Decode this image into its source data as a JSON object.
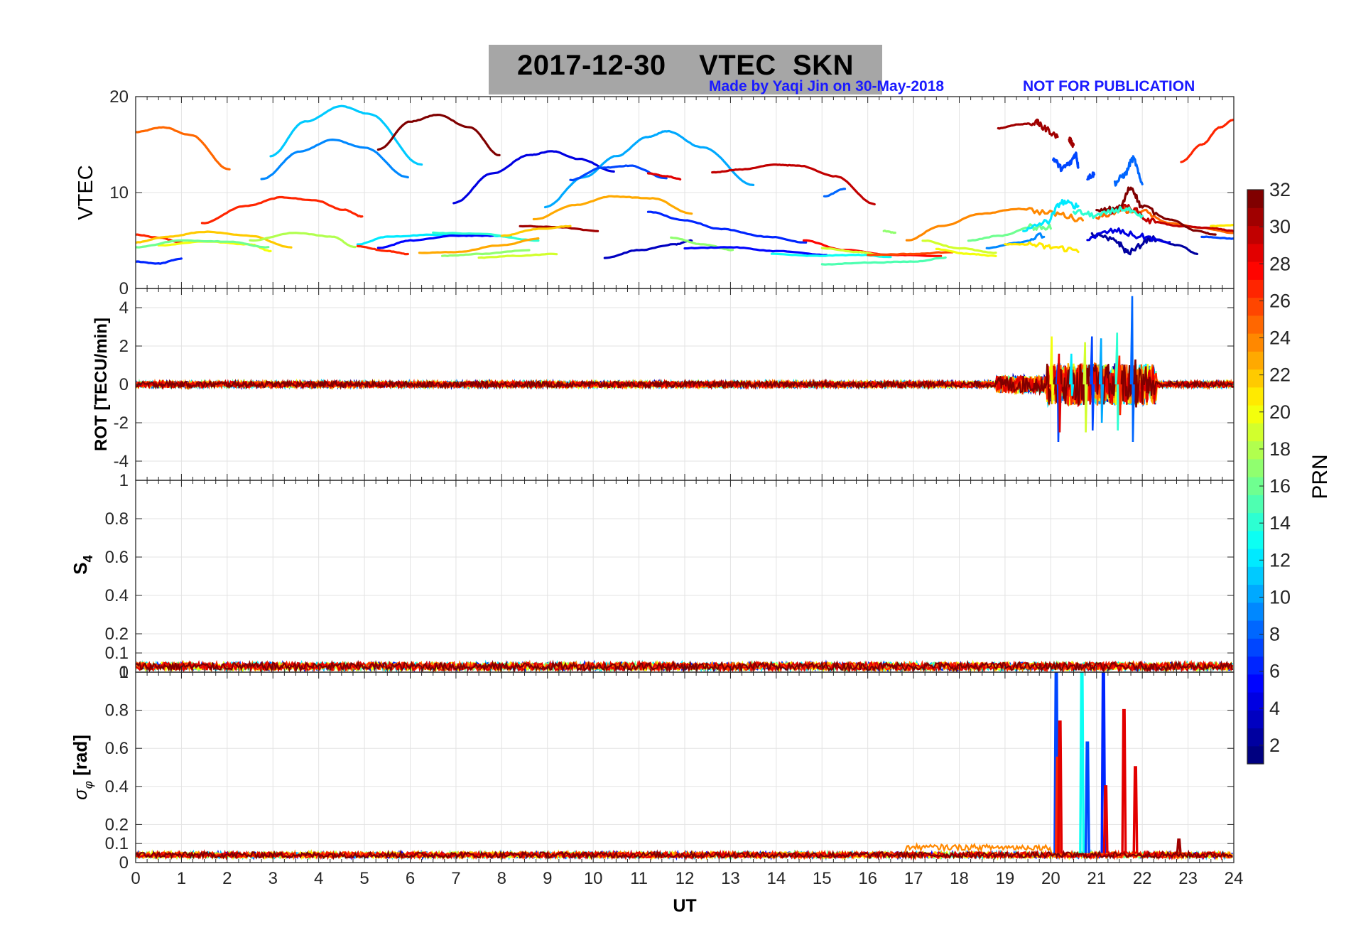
{
  "title": "2017-12-30    VTEC  SKN",
  "credit_made_by": "Made by Yaqi Jin on 30-May-2018",
  "credit_notice": "NOT FOR PUBLICATION",
  "xlabel": "UT",
  "x_ticks": [
    "0",
    "1",
    "2",
    "3",
    "4",
    "5",
    "6",
    "7",
    "8",
    "9",
    "10",
    "11",
    "12",
    "13",
    "14",
    "15",
    "16",
    "17",
    "18",
    "19",
    "20",
    "21",
    "22",
    "23",
    "24"
  ],
  "colorbar": {
    "label": "PRN",
    "ticks": [
      "2",
      "4",
      "6",
      "8",
      "10",
      "12",
      "14",
      "16",
      "18",
      "20",
      "22",
      "24",
      "26",
      "28",
      "30",
      "32"
    ],
    "range": [
      1,
      32
    ]
  },
  "panels": [
    {
      "id": "vtec",
      "ylabel": "VTEC",
      "y_ticks": [
        "0",
        "10",
        "20"
      ],
      "ylim": [
        0,
        20
      ]
    },
    {
      "id": "rot",
      "ylabel": "ROT [TECU/min]",
      "y_ticks": [
        "-4",
        "-2",
        "0",
        "2",
        "4"
      ],
      "ylim": [
        -5,
        5
      ]
    },
    {
      "id": "s4",
      "ylabel": "S4",
      "y_ticks": [
        "0",
        "0.1",
        "0.2",
        "0.4",
        "0.6",
        "0.8",
        "1"
      ],
      "ylim": [
        0,
        1
      ]
    },
    {
      "id": "sigma",
      "ylabel": "σφ [rad]",
      "y_ticks": [
        "0",
        "0.1",
        "0.2",
        "0.4",
        "0.6",
        "0.8",
        "1"
      ],
      "ylim": [
        0,
        1
      ]
    }
  ],
  "chart_data": {
    "type": "line",
    "x_range": [
      0,
      24
    ],
    "xlabel": "UT",
    "vtec_arcs": [
      {
        "prn": 25,
        "x": [
          0.0,
          0.6,
          1.2,
          2.05
        ],
        "y": [
          16.3,
          16.8,
          16.0,
          12.4
        ]
      },
      {
        "prn": 11,
        "x": [
          2.95,
          3.7,
          4.5,
          5.1,
          6.25
        ],
        "y": [
          13.8,
          17.4,
          19.0,
          18.2,
          12.9
        ]
      },
      {
        "prn": 9,
        "x": [
          2.75,
          3.6,
          4.3,
          5.0,
          5.95
        ],
        "y": [
          11.4,
          14.3,
          15.5,
          14.7,
          11.6
        ]
      },
      {
        "prn": 32,
        "x": [
          5.3,
          6.0,
          6.6,
          7.3,
          7.95
        ],
        "y": [
          14.5,
          17.4,
          18.1,
          16.8,
          13.9
        ]
      },
      {
        "prn": 4,
        "x": [
          6.95,
          7.8,
          8.6,
          9.1,
          9.7,
          10.45
        ],
        "y": [
          8.9,
          12.0,
          13.9,
          14.3,
          13.5,
          12.2
        ]
      },
      {
        "prn": 10,
        "x": [
          8.95,
          9.8,
          10.5,
          11.2,
          11.6,
          12.4,
          13.5
        ],
        "y": [
          8.5,
          11.6,
          13.8,
          15.8,
          16.4,
          14.7,
          10.8
        ]
      },
      {
        "prn": 7,
        "x": [
          9.5,
          10.2,
          10.8,
          11.6
        ],
        "y": [
          11.3,
          12.6,
          12.8,
          11.5
        ]
      },
      {
        "prn": 29,
        "x": [
          11.2,
          11.6,
          11.9
        ],
        "y": [
          12.0,
          11.7,
          11.4
        ]
      },
      {
        "prn": 30,
        "x": [
          12.6,
          13.2,
          14.0,
          14.5,
          15.3,
          16.15
        ],
        "y": [
          12.1,
          12.4,
          12.9,
          12.8,
          11.7,
          8.8
        ]
      },
      {
        "prn": 8,
        "x": [
          15.05,
          15.5
        ],
        "y": [
          9.6,
          10.4
        ]
      },
      {
        "prn": 27,
        "x": [
          1.45,
          2.4,
          3.2,
          3.9,
          4.55,
          4.95
        ],
        "y": [
          6.8,
          8.6,
          9.5,
          9.2,
          8.2,
          7.5
        ]
      },
      {
        "prn": 27,
        "x": [
          0.0,
          0.5,
          1.0
        ],
        "y": [
          5.6,
          5.3,
          4.8
        ]
      },
      {
        "prn": 6,
        "x": [
          0.0,
          0.5,
          1.0
        ],
        "y": [
          2.8,
          2.6,
          3.1
        ]
      },
      {
        "prn": 22,
        "x": [
          0.0,
          0.7,
          1.5,
          2.5,
          3.4
        ],
        "y": [
          4.8,
          5.4,
          5.9,
          5.5,
          4.3
        ]
      },
      {
        "prn": 20,
        "x": [
          0.5,
          1.5,
          2.5,
          2.95
        ],
        "y": [
          4.5,
          4.9,
          4.6,
          3.9
        ]
      },
      {
        "prn": 16,
        "x": [
          0.0,
          1.0,
          2.0,
          2.9
        ],
        "y": [
          4.3,
          5.0,
          4.9,
          4.3
        ]
      },
      {
        "prn": 18,
        "x": [
          2.5,
          3.5,
          4.3,
          4.8
        ],
        "y": [
          5.0,
          5.8,
          5.4,
          4.3
        ]
      },
      {
        "prn": 12,
        "x": [
          4.85,
          5.5,
          6.5,
          7.5,
          8.2
        ],
        "y": [
          4.6,
          5.4,
          5.6,
          5.6,
          5.4
        ]
      },
      {
        "prn": 5,
        "x": [
          5.3,
          6.0,
          7.0,
          7.8
        ],
        "y": [
          4.2,
          5.0,
          5.5,
          5.5
        ]
      },
      {
        "prn": 27,
        "x": [
          4.85,
          5.5,
          5.95
        ],
        "y": [
          4.4,
          3.9,
          3.6
        ]
      },
      {
        "prn": 14,
        "x": [
          6.5,
          7.5,
          8.8
        ],
        "y": [
          5.8,
          5.7,
          5.0
        ]
      },
      {
        "prn": 23,
        "x": [
          6.2,
          7.0,
          8.0,
          8.8
        ],
        "y": [
          3.7,
          3.8,
          4.5,
          5.2
        ]
      },
      {
        "prn": 17,
        "x": [
          6.7,
          7.5,
          8.6
        ],
        "y": [
          3.4,
          3.6,
          4.0
        ]
      },
      {
        "prn": 19,
        "x": [
          7.5,
          8.3,
          9.2
        ],
        "y": [
          3.2,
          3.4,
          3.6
        ]
      },
      {
        "prn": 31,
        "x": [
          8.4,
          9.2,
          10.1
        ],
        "y": [
          6.5,
          6.4,
          6.0
        ]
      },
      {
        "prn": 22,
        "x": [
          8.0,
          8.8,
          9.5
        ],
        "y": [
          5.5,
          6.2,
          6.5
        ]
      },
      {
        "prn": 23,
        "x": [
          8.7,
          9.6,
          10.4,
          11.3,
          12.15
        ],
        "y": [
          7.2,
          8.7,
          9.6,
          9.4,
          7.8
        ]
      },
      {
        "prn": 6,
        "x": [
          11.2,
          12.0,
          12.8,
          13.8,
          14.65
        ],
        "y": [
          8.0,
          7.1,
          6.2,
          5.4,
          4.8
        ]
      },
      {
        "prn": 3,
        "x": [
          10.25,
          11.0,
          11.8,
          12.15
        ],
        "y": [
          3.2,
          4.0,
          4.6,
          5.0
        ]
      },
      {
        "prn": 17,
        "x": [
          11.7,
          12.4,
          13.05
        ],
        "y": [
          5.3,
          4.6,
          4.0
        ]
      },
      {
        "prn": 5,
        "x": [
          12.0,
          13.0,
          14.0,
          15.1
        ],
        "y": [
          4.2,
          4.3,
          3.9,
          3.5
        ]
      },
      {
        "prn": 13,
        "x": [
          13.9,
          14.8,
          15.8,
          16.5
        ],
        "y": [
          3.6,
          3.4,
          3.5,
          3.3
        ]
      },
      {
        "prn": 28,
        "x": [
          14.6,
          15.5,
          16.5,
          17.6
        ],
        "y": [
          5.0,
          4.0,
          3.5,
          3.4
        ]
      },
      {
        "prn": 19,
        "x": [
          15.0,
          15.8,
          16.3
        ],
        "y": [
          4.2,
          3.8,
          3.5
        ]
      },
      {
        "prn": 15,
        "x": [
          15.0,
          16.0,
          17.0,
          17.7
        ],
        "y": [
          2.5,
          2.7,
          2.8,
          3.2
        ]
      },
      {
        "prn": 26,
        "x": [
          16.0,
          17.0,
          17.85
        ],
        "y": [
          3.5,
          3.6,
          3.8
        ]
      },
      {
        "prn": 17,
        "x": [
          16.35,
          16.6
        ],
        "y": [
          6.0,
          5.8
        ]
      },
      {
        "prn": 24,
        "x": [
          16.85,
          17.6,
          18.5,
          19.3,
          20.1,
          20.7
        ],
        "y": [
          5.0,
          6.5,
          7.8,
          8.3,
          7.8,
          7.2
        ]
      },
      {
        "prn": 19,
        "x": [
          17.2,
          18.0,
          18.8
        ],
        "y": [
          5.0,
          4.2,
          3.7
        ]
      },
      {
        "prn": 20,
        "x": [
          17.5,
          18.2,
          18.8
        ],
        "y": [
          4.1,
          3.6,
          3.4
        ]
      },
      {
        "prn": 16,
        "x": [
          18.2,
          18.9,
          19.6,
          20.0
        ],
        "y": [
          5.0,
          5.5,
          6.4,
          6.4
        ]
      },
      {
        "prn": 9,
        "x": [
          18.6,
          19.3,
          19.85
        ],
        "y": [
          4.2,
          4.8,
          5.5
        ]
      },
      {
        "prn": 21,
        "x": [
          19.0,
          19.5,
          20.0,
          20.6
        ],
        "y": [
          4.6,
          4.6,
          4.3,
          4.0
        ]
      },
      {
        "prn": 12,
        "x": [
          19.4,
          19.9,
          20.25,
          20.6
        ],
        "y": [
          6.0,
          6.9,
          9.0,
          8.6
        ]
      },
      {
        "prn": 31,
        "x": [
          18.85,
          19.3,
          19.7,
          19.85,
          20.15
        ],
        "y": [
          16.7,
          17.1,
          17.3,
          16.7,
          15.9
        ]
      },
      {
        "prn": 31,
        "x": [
          20.4,
          20.5
        ],
        "y": [
          15.5,
          15.0
        ]
      },
      {
        "prn": 7,
        "x": [
          20.05,
          20.25,
          20.4,
          20.55,
          20.6
        ],
        "y": [
          13.5,
          12.5,
          13.0,
          14.0,
          12.8
        ]
      },
      {
        "prn": 7,
        "x": [
          20.8,
          20.95
        ],
        "y": [
          11.6,
          11.9
        ]
      },
      {
        "prn": 8,
        "x": [
          21.4,
          21.6,
          21.8,
          22.0
        ],
        "y": [
          11.0,
          11.8,
          13.5,
          11.0
        ]
      },
      {
        "prn": 25,
        "x": [
          21.0,
          21.6,
          22.0,
          22.6,
          23.3,
          24.0
        ],
        "y": [
          7.5,
          8.2,
          8.0,
          6.8,
          6.3,
          5.8
        ]
      },
      {
        "prn": 30,
        "x": [
          21.2,
          21.7,
          22.2,
          22.8,
          23.5,
          24.0
        ],
        "y": [
          8.0,
          8.5,
          7.0,
          6.5,
          6.3,
          6.0
        ]
      },
      {
        "prn": 32,
        "x": [
          21.0,
          21.5,
          21.75,
          22.0,
          22.6,
          23.2,
          23.6
        ],
        "y": [
          8.0,
          8.4,
          10.5,
          8.5,
          7.2,
          6.0,
          5.6
        ]
      },
      {
        "prn": 2,
        "x": [
          20.9,
          21.4,
          21.7,
          22.2,
          22.8,
          23.2
        ],
        "y": [
          5.6,
          5.0,
          3.8,
          5.2,
          4.5,
          3.6
        ]
      },
      {
        "prn": 4,
        "x": [
          20.8,
          21.4,
          22.0,
          22.6
        ],
        "y": [
          5.3,
          6.0,
          5.4,
          4.8
        ]
      },
      {
        "prn": 14,
        "x": [
          20.5,
          21.0,
          21.6,
          22.0
        ],
        "y": [
          8.0,
          7.6,
          8.3,
          7.4
        ]
      },
      {
        "prn": 27,
        "x": [
          22.85,
          23.3,
          23.7,
          24.0
        ],
        "y": [
          13.2,
          15.0,
          16.8,
          17.6
        ]
      },
      {
        "prn": 7,
        "x": [
          23.3,
          24.0
        ],
        "y": [
          5.4,
          5.2
        ]
      },
      {
        "prn": 21,
        "x": [
          23.5,
          24.0
        ],
        "y": [
          6.5,
          6.6
        ]
      }
    ],
    "rot_envelope": {
      "description_values": "ROT noise near 0 TECU/min except 19-22.2 UT",
      "quiet_amplitude": 0.15,
      "spikes": [
        {
          "prn": 20,
          "x": 20.02,
          "y_min": -1.0,
          "y_max": 2.5
        },
        {
          "prn": 7,
          "x": 20.15,
          "y_min": -3.0,
          "y_max": 1.0
        },
        {
          "prn": 29,
          "x": 20.18,
          "y_min": -2.5,
          "y_max": 1.6
        },
        {
          "prn": 12,
          "x": 20.45,
          "y_min": -0.6,
          "y_max": 1.6
        },
        {
          "prn": 19,
          "x": 20.75,
          "y_min": -2.5,
          "y_max": 2.2
        },
        {
          "prn": 7,
          "x": 20.9,
          "y_min": -2.4,
          "y_max": 2.5
        },
        {
          "prn": 10,
          "x": 21.1,
          "y_min": -2.0,
          "y_max": 2.4
        },
        {
          "prn": 14,
          "x": 21.45,
          "y_min": -2.4,
          "y_max": 2.7
        },
        {
          "prn": 27,
          "x": 21.5,
          "y_min": -1.6,
          "y_max": 1.5
        },
        {
          "prn": 8,
          "x": 21.78,
          "y_min": -3.0,
          "y_max": 4.6
        },
        {
          "prn": 32,
          "x": 21.85,
          "y_min": -1.2,
          "y_max": 1.3
        }
      ]
    },
    "s4_baseline": {
      "level": 0.03,
      "amplitude": 0.02
    },
    "sigma_phi_baseline": {
      "level": 0.04,
      "amplitude": 0.015
    },
    "sigma_phi_spikes": [
      {
        "prn": 7,
        "x": 20.12,
        "y": 1.0
      },
      {
        "prn": 27,
        "x": 20.15,
        "y": 0.55
      },
      {
        "prn": 29,
        "x": 20.2,
        "y": 0.74
      },
      {
        "prn": 13,
        "x": 20.68,
        "y": 1.0
      },
      {
        "prn": 7,
        "x": 20.8,
        "y": 0.63
      },
      {
        "prn": 6,
        "x": 21.15,
        "y": 1.0
      },
      {
        "prn": 29,
        "x": 21.2,
        "y": 0.4
      },
      {
        "prn": 29,
        "x": 21.6,
        "y": 0.8
      },
      {
        "prn": 29,
        "x": 21.85,
        "y": 0.5
      },
      {
        "prn": 31,
        "x": 22.8,
        "y": 0.12
      }
    ]
  }
}
